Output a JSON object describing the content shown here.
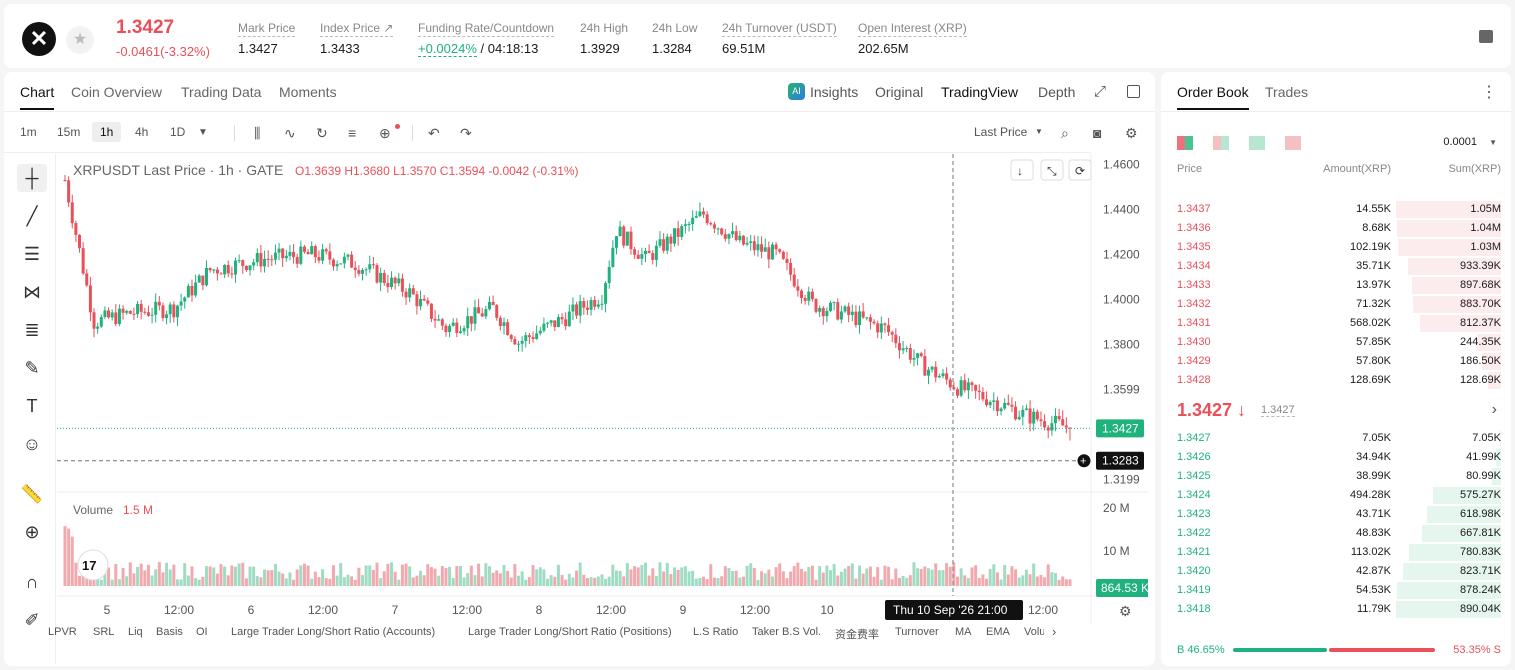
{
  "header": {
    "last_price": "1.3427",
    "change": "-0.0461(-3.32%)",
    "stats": [
      {
        "label": "Mark Price",
        "value": "1.3427"
      },
      {
        "label": "Index Price ↗",
        "value": "1.3433"
      },
      {
        "label": "Funding Rate/Countdown",
        "value_green": "+0.0024%",
        "value": " / 04:18:13"
      },
      {
        "label": "24h High",
        "value": "1.3929"
      },
      {
        "label": "24h Low",
        "value": "1.3284"
      },
      {
        "label": "24h Turnover (USDT)",
        "value": "69.51M"
      },
      {
        "label": "Open Interest (XRP)",
        "value": "202.65M"
      }
    ]
  },
  "chart_tabs": [
    "Chart",
    "Coin Overview",
    "Trading Data",
    "Moments"
  ],
  "view_tabs": [
    "Insights",
    "Original",
    "TradingView",
    "Depth"
  ],
  "intervals": [
    "1m",
    "15m",
    "1h",
    "4h",
    "1D"
  ],
  "price_type": "Last Price",
  "legend": {
    "symbol": "XRPUSDT Last Price · 1h · GATE",
    "o": "1.3639",
    "h": "1.3680",
    "l": "1.3570",
    "c": "1.3594",
    "chg": "-0.0042 (-0.31%)"
  },
  "volume_label": "Volume",
  "volume_value": "1.5 M",
  "crosshair_time": "Thu 10 Sep '26   21:00",
  "chart_data": {
    "type": "candlestick",
    "price_axis": [
      "1.4600",
      "1.4400",
      "1.4200",
      "1.4000",
      "1.3800",
      "1.3599",
      "1.3199"
    ],
    "volume_axis": [
      "20 M",
      "10 M"
    ],
    "time_axis": [
      "5",
      "12:00",
      "6",
      "12:00",
      "7",
      "12:00",
      "8",
      "12:00",
      "9",
      "12:00",
      "10",
      "12:00"
    ],
    "last_price_tag": "1.3427",
    "crosshair_price_tag": "1.3283",
    "volume_tag": "864.53 K",
    "ylim": [
      1.3144,
      1.4646
    ]
  },
  "indicators": [
    "LPVR",
    "SRL",
    "Liq",
    "Basis",
    "OI",
    "Large Trader Long/Short Ratio (Accounts)",
    "Large Trader Long/Short Ratio (Positions)",
    "L.S Ratio",
    "Taker B.S Vol.",
    "资金费率",
    "Turnover",
    "MA",
    "EMA",
    "Volu"
  ],
  "orderbook": {
    "tabs": [
      "Order Book",
      "Trades"
    ],
    "precision": "0.0001",
    "headers": [
      "Price",
      "Amount(XRP)",
      "Sum(XRP)"
    ],
    "asks": [
      {
        "p": "1.3437",
        "a": "14.55K",
        "s": "1.05M",
        "w": 1.0
      },
      {
        "p": "1.3436",
        "a": "8.68K",
        "s": "1.04M",
        "w": 0.99
      },
      {
        "p": "1.3435",
        "a": "102.19K",
        "s": "1.03M",
        "w": 0.98
      },
      {
        "p": "1.3434",
        "a": "35.71K",
        "s": "933.39K",
        "w": 0.89
      },
      {
        "p": "1.3433",
        "a": "13.97K",
        "s": "897.68K",
        "w": 0.85
      },
      {
        "p": "1.3432",
        "a": "71.32K",
        "s": "883.70K",
        "w": 0.84
      },
      {
        "p": "1.3431",
        "a": "568.02K",
        "s": "812.37K",
        "w": 0.77
      },
      {
        "p": "1.3430",
        "a": "57.85K",
        "s": "244.35K",
        "w": 0.23
      },
      {
        "p": "1.3429",
        "a": "57.80K",
        "s": "186.50K",
        "w": 0.18
      },
      {
        "p": "1.3428",
        "a": "128.69K",
        "s": "128.69K",
        "w": 0.12
      }
    ],
    "mid_price": "1.3427 ↓",
    "mid_mark": "1.3427",
    "bids": [
      {
        "p": "1.3427",
        "a": "7.05K",
        "s": "7.05K",
        "w": 0.01
      },
      {
        "p": "1.3426",
        "a": "34.94K",
        "s": "41.99K",
        "w": 0.05
      },
      {
        "p": "1.3425",
        "a": "38.99K",
        "s": "80.99K",
        "w": 0.09
      },
      {
        "p": "1.3424",
        "a": "494.28K",
        "s": "575.27K",
        "w": 0.65
      },
      {
        "p": "1.3423",
        "a": "43.71K",
        "s": "618.98K",
        "w": 0.7
      },
      {
        "p": "1.3422",
        "a": "48.83K",
        "s": "667.81K",
        "w": 0.75
      },
      {
        "p": "1.3421",
        "a": "113.02K",
        "s": "780.83K",
        "w": 0.88
      },
      {
        "p": "1.3420",
        "a": "42.87K",
        "s": "823.71K",
        "w": 0.93
      },
      {
        "p": "1.3419",
        "a": "54.53K",
        "s": "878.24K",
        "w": 0.99
      },
      {
        "p": "1.3418",
        "a": "11.79K",
        "s": "890.04K",
        "w": 1.0
      }
    ],
    "buy_ratio": "B 46.65%",
    "sell_ratio": "53.35% S",
    "buy_pct": 46.65
  },
  "colors": {
    "up": "#1fb27c",
    "down": "#e8505a"
  }
}
